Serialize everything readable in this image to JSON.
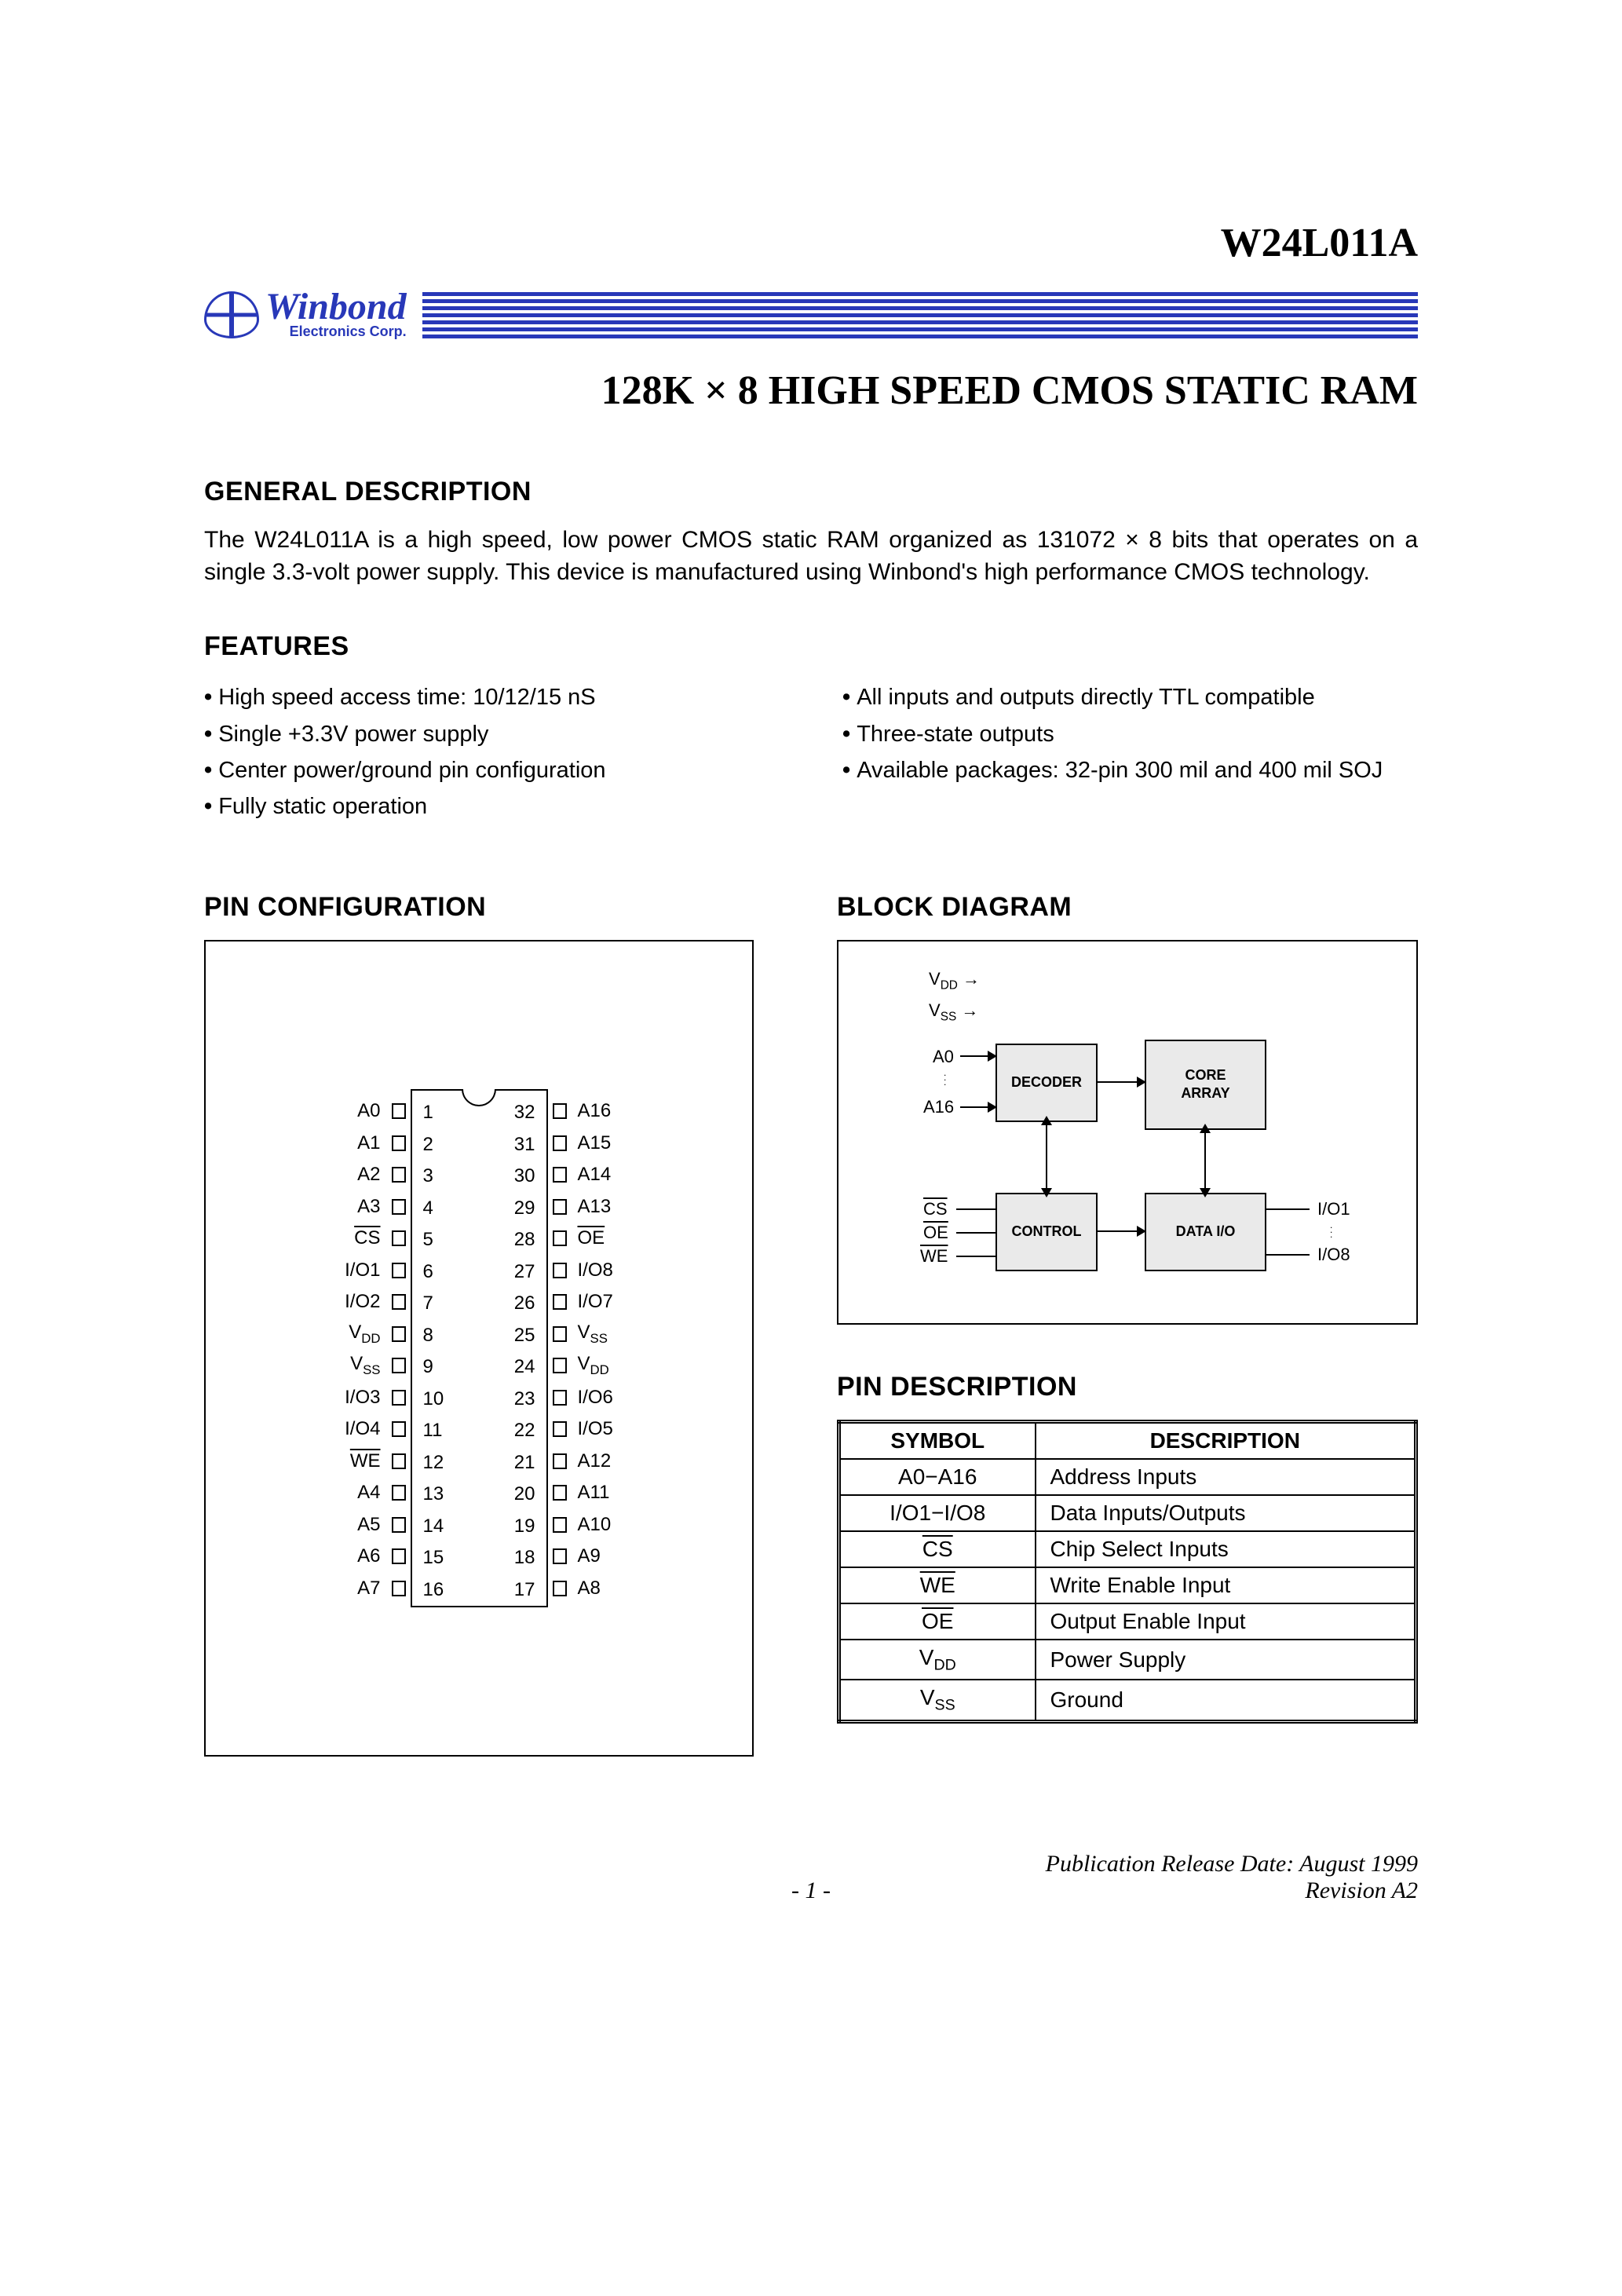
{
  "header": {
    "part_number": "W24L011A",
    "brand_name": "Winbond",
    "brand_sub": "Electronics Corp.",
    "product_title_prefix": "128K ",
    "product_title_mult": "×",
    "product_title_suffix": " 8 HIGH SPEED CMOS STATIC RAM",
    "brand_color": "#2838b8",
    "header_bar_count": 7
  },
  "sections": {
    "general_desc_heading": "GENERAL DESCRIPTION",
    "general_desc_text": "The W24L011A is a high speed, low power CMOS static RAM organized as 131072 × 8 bits that operates on a single 3.3-volt power supply. This device is manufactured using Winbond's high performance CMOS technology.",
    "features_heading": "FEATURES",
    "pin_config_heading": "PIN CONFIGURATION",
    "block_diagram_heading": "BLOCK DIAGRAM",
    "pin_desc_heading": "PIN DESCRIPTION"
  },
  "features": {
    "left": [
      "High speed access time: 10/12/15 nS",
      "Single +3.3V power supply",
      "Center power/ground pin configuration",
      "Fully static operation"
    ],
    "right": [
      "All inputs and outputs directly TTL compatible",
      "Three-state outputs",
      "Available packages: 32-pin 300 mil and 400 mil SOJ"
    ]
  },
  "pin_config": {
    "pin_count": 32,
    "left": [
      {
        "num": 1,
        "label": "A0"
      },
      {
        "num": 2,
        "label": "A1"
      },
      {
        "num": 3,
        "label": "A2"
      },
      {
        "num": 4,
        "label": "A3"
      },
      {
        "num": 5,
        "label": "CS",
        "overline": true
      },
      {
        "num": 6,
        "label": "I/O1"
      },
      {
        "num": 7,
        "label": "I/O2"
      },
      {
        "num": 8,
        "label": "V",
        "sub": "DD"
      },
      {
        "num": 9,
        "label": "V",
        "sub": "SS"
      },
      {
        "num": 10,
        "label": "I/O3"
      },
      {
        "num": 11,
        "label": "I/O4"
      },
      {
        "num": 12,
        "label": "WE",
        "overline": true
      },
      {
        "num": 13,
        "label": "A4"
      },
      {
        "num": 14,
        "label": "A5"
      },
      {
        "num": 15,
        "label": "A6"
      },
      {
        "num": 16,
        "label": "A7"
      }
    ],
    "right": [
      {
        "num": 32,
        "label": "A16"
      },
      {
        "num": 31,
        "label": "A15"
      },
      {
        "num": 30,
        "label": "A14"
      },
      {
        "num": 29,
        "label": "A13"
      },
      {
        "num": 28,
        "label": "OE",
        "overline": true
      },
      {
        "num": 27,
        "label": "I/O8"
      },
      {
        "num": 26,
        "label": "I/O7"
      },
      {
        "num": 25,
        "label": "V",
        "sub": "SS"
      },
      {
        "num": 24,
        "label": "V",
        "sub": "DD"
      },
      {
        "num": 23,
        "label": "I/O6"
      },
      {
        "num": 22,
        "label": "I/O5"
      },
      {
        "num": 21,
        "label": "A12"
      },
      {
        "num": 20,
        "label": "A11"
      },
      {
        "num": 19,
        "label": "A10"
      },
      {
        "num": 18,
        "label": "A9"
      },
      {
        "num": 17,
        "label": "A8"
      }
    ]
  },
  "block_diagram": {
    "inputs_top": [
      {
        "label": "V",
        "sub": "DD"
      },
      {
        "label": "V",
        "sub": "SS"
      }
    ],
    "addr_top": "A0",
    "addr_bot": "A16",
    "ctrl_inputs": [
      {
        "label": "CS",
        "overline": true
      },
      {
        "label": "OE",
        "overline": true
      },
      {
        "label": "WE",
        "overline": true
      }
    ],
    "io_top": "I/O1",
    "io_bot": "I/O8",
    "boxes": {
      "decoder": "DECODER",
      "core": "CORE ARRAY",
      "control": "CONTROL",
      "dataio": "DATA I/O"
    },
    "box_fill": "#eaeaea"
  },
  "pin_desc": {
    "headers": [
      "SYMBOL",
      "DESCRIPTION"
    ],
    "rows": [
      {
        "symbol": "A0−A16",
        "desc": "Address Inputs"
      },
      {
        "symbol": "I/O1−I/O8",
        "desc": "Data Inputs/Outputs"
      },
      {
        "symbol": "CS",
        "overline": true,
        "desc": "Chip Select Inputs"
      },
      {
        "symbol": "WE",
        "overline": true,
        "desc": "Write Enable Input"
      },
      {
        "symbol": "OE",
        "overline": true,
        "desc": "Output Enable Input"
      },
      {
        "symbol": "V",
        "sub": "DD",
        "desc": "Power Supply"
      },
      {
        "symbol": "V",
        "sub": "SS",
        "desc": "Ground"
      }
    ]
  },
  "footer": {
    "pub_date": "Publication Release Date: August 1999",
    "revision": "Revision A2",
    "page": "- 1 -"
  }
}
